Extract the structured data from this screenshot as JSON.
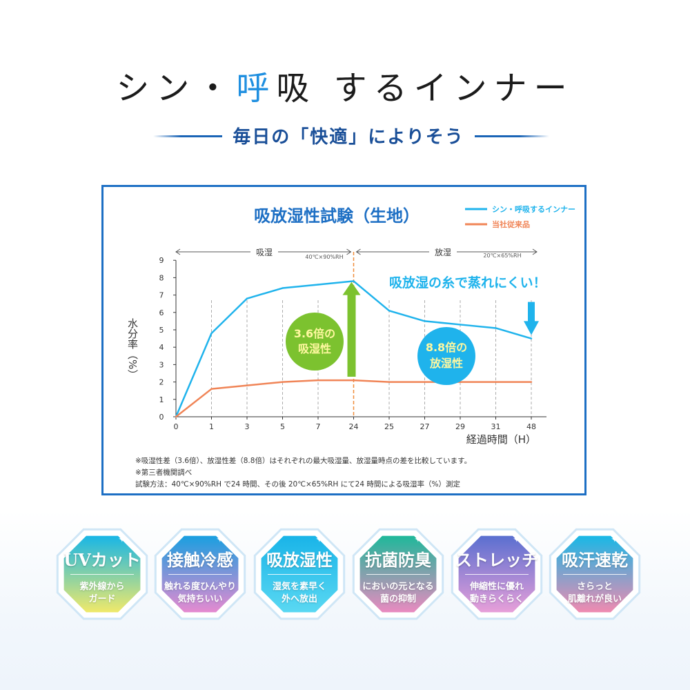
{
  "header": {
    "title_part1": "シン・",
    "title_hl1": "呼",
    "title_mid": "吸",
    "title_part2": " するインナー",
    "subtitle": "毎日の「快適」によりそう"
  },
  "colors": {
    "accent": "#1f8fe0",
    "box_border": "#1d6fc4",
    "series_new": "#1fb3ec",
    "series_old": "#f08456",
    "absorb_arrow": "#7cc22f",
    "release_arrow": "#1fb3ec"
  },
  "chart_data": {
    "type": "line",
    "title": "吸放湿性試験（生地）",
    "xlabel": "経過時間（H）",
    "ylabel": "水分率（%）",
    "categories": [
      "0",
      "1",
      "3",
      "5",
      "7",
      "24",
      "25",
      "27",
      "29",
      "31",
      "48"
    ],
    "ylim": [
      0,
      9
    ],
    "yticks": [
      0,
      1,
      2,
      3,
      4,
      5,
      6,
      7,
      8,
      9
    ],
    "series": [
      {
        "name": "シン・呼吸するインナー",
        "color": "#1fb3ec",
        "values": [
          0,
          4.8,
          6.8,
          7.4,
          7.6,
          7.8,
          6.1,
          5.5,
          5.3,
          5.1,
          4.5
        ]
      },
      {
        "name": "当社従来品",
        "color": "#f08456",
        "values": [
          0,
          1.6,
          1.8,
          2.0,
          2.1,
          2.1,
          2.0,
          2.0,
          2.0,
          2.0,
          2.0
        ]
      }
    ],
    "phase_absorb_label": "吸湿",
    "phase_absorb_cond": "40℃×90%RH",
    "phase_release_label": "放湿",
    "phase_release_cond": "20℃×65%RH",
    "annotation_release": "吸放湿の糸で蒸れにくい！",
    "bubble_absorb": [
      "3.6倍の",
      "吸湿性"
    ],
    "bubble_release": [
      "8.8倍の",
      "放湿性"
    ],
    "notes": [
      "※吸湿性差（3.6倍）、放湿性差（8.8倍）はそれぞれの最大吸湿量、放湿量時点の差を比較しています。",
      "※第三者機関調べ",
      "試験方法：40℃×90%RH で24 時間、その後 20℃×65%RH にて24 時間による吸湿率（%）測定"
    ]
  },
  "badges": [
    {
      "title": "UVカット",
      "desc": "紫外線から\nガード",
      "top": "#18b6e6",
      "bottom": "#f0e96a"
    },
    {
      "title": "接触冷感",
      "desc": "触れる度ひんやり\n気持ちいい",
      "top": "#1a9fe0",
      "bottom": "#e58ad0"
    },
    {
      "title": "吸放湿性",
      "desc": "湿気を素早く\n外へ放出",
      "top": "#19b4e8",
      "bottom": "#5ad8f2"
    },
    {
      "title": "抗菌防臭",
      "desc": "においの元となる\n菌の抑制",
      "top": "#1fb89a",
      "bottom": "#e98ac0"
    },
    {
      "title": "ストレッチ",
      "desc": "伸縮性に優れ\n動きらくらく",
      "top": "#5a6fd0",
      "bottom": "#e79fd9"
    },
    {
      "title": "吸汗速乾",
      "desc": "さらっと\n肌離れが良い",
      "top": "#19b8e6",
      "bottom": "#f08ab0"
    }
  ]
}
